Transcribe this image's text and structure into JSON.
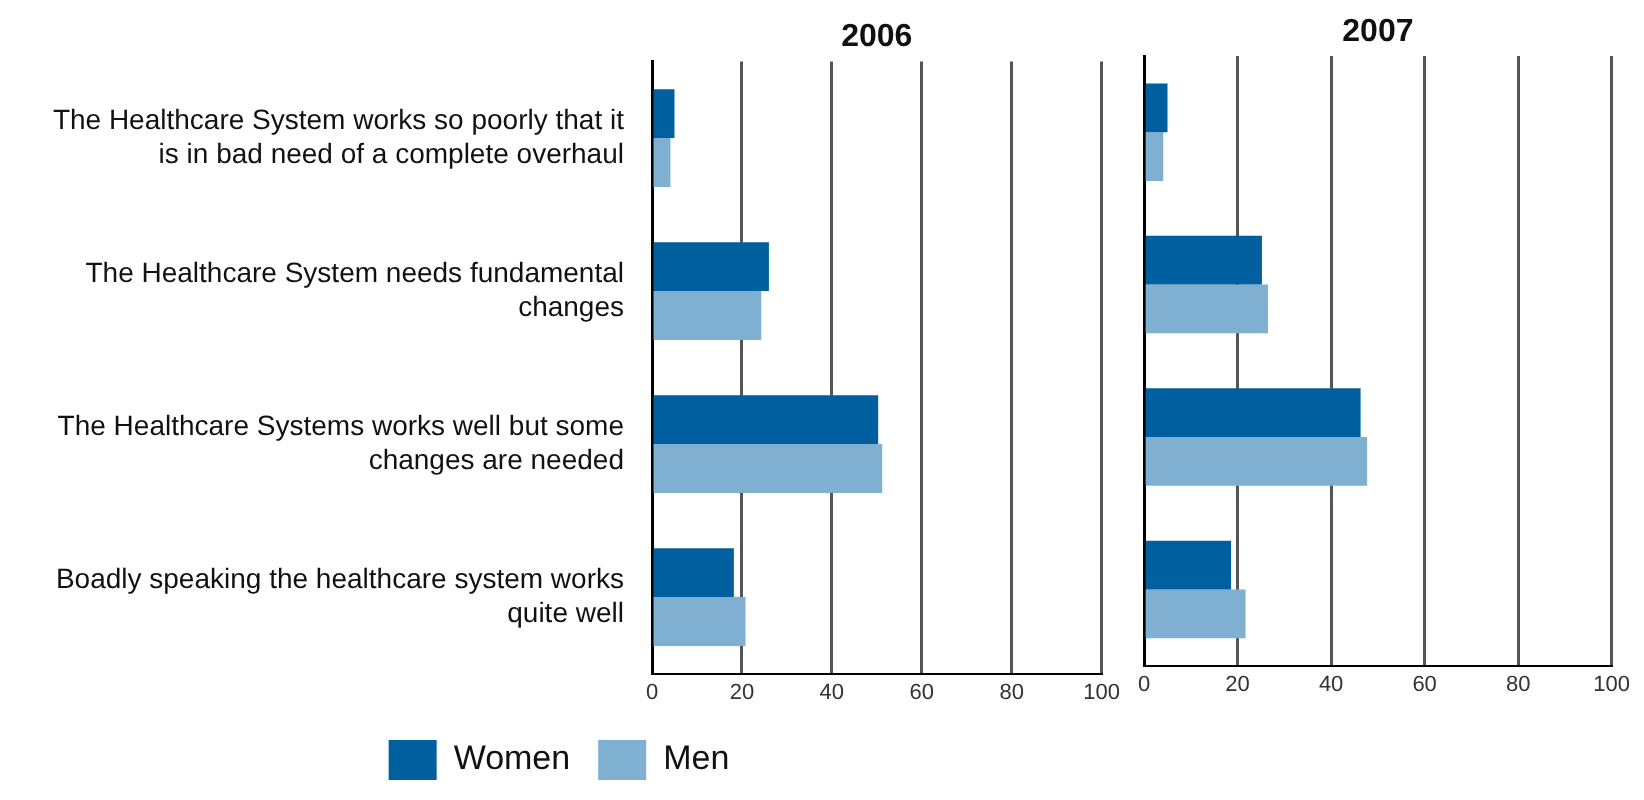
{
  "chart_data": [
    {
      "type": "bar",
      "orientation": "horizontal",
      "title": "2006",
      "categories": [
        "The Healthcare System works so poorly that it is in bad need of a complete overhaul",
        "The Healthcare System needs fundamental changes",
        "The Healthcare Systems works well but some changes are needed",
        "Boadly speaking the healthcare system works quite well"
      ],
      "series": [
        {
          "name": "Women",
          "color": "#005f9e",
          "values": [
            5.0,
            26.0,
            50.3,
            18.2
          ]
        },
        {
          "name": "Men",
          "color": "#7fb0d2",
          "values": [
            4.1,
            24.3,
            51.2,
            20.8
          ]
        }
      ],
      "xlim": [
        0,
        100
      ],
      "xticks": [
        0,
        20,
        40,
        60,
        80,
        100
      ],
      "grid": "x",
      "legend": "bottom"
    },
    {
      "type": "bar",
      "orientation": "horizontal",
      "title": "2007",
      "categories": [
        null,
        null,
        null,
        null
      ],
      "series": [
        {
          "color": "#005f9e",
          "values": [
            5.0,
            25.2,
            46.3,
            18.6
          ]
        },
        {
          "color": "#7fb0d2",
          "values": [
            4.1,
            26.5,
            47.7,
            21.7
          ]
        }
      ],
      "xlim": [
        0,
        100
      ],
      "xticks": [
        0,
        20,
        40,
        60,
        80,
        100
      ],
      "grid": "x",
      "tick_labels": "x"
    }
  ]
}
